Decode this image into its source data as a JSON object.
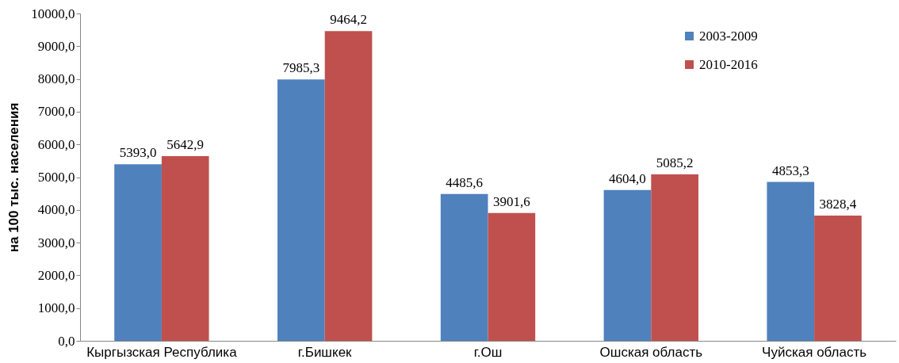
{
  "chart_data": {
    "type": "bar",
    "ylabel": "на 100 тыс. населения",
    "categories": [
      "Кыргызская Республика",
      "г.Бишкек",
      "г.Ош",
      "Ошская область",
      "Чуйская область"
    ],
    "series": [
      {
        "name": "2003-2009",
        "color": "#4f81bd",
        "values": [
          5393.0,
          7985.3,
          4485.6,
          4604.0,
          4853.3
        ],
        "value_labels": [
          "5393,0",
          "7985,3",
          "4485,6",
          "4604,0",
          "4853,3"
        ]
      },
      {
        "name": "2010-2016",
        "color": "#c0504d",
        "values": [
          5642.9,
          9464.2,
          3901.6,
          5085.2,
          3828.4
        ],
        "value_labels": [
          "5642,9",
          "9464,2",
          "3901,6",
          "5085,2",
          "3828,4"
        ]
      }
    ],
    "ylim": [
      0,
      10000
    ],
    "yticks": [
      {
        "value": 0,
        "label": "0,0"
      },
      {
        "value": 1000,
        "label": "1000,0"
      },
      {
        "value": 2000,
        "label": "2000,0"
      },
      {
        "value": 3000,
        "label": "3000,0"
      },
      {
        "value": 4000,
        "label": "4000,0"
      },
      {
        "value": 5000,
        "label": "5000,0"
      },
      {
        "value": 6000,
        "label": "6000,0"
      },
      {
        "value": 7000,
        "label": "7000,0"
      },
      {
        "value": 8000,
        "label": "8000,0"
      },
      {
        "value": 9000,
        "label": "9000,0"
      },
      {
        "value": 10000,
        "label": "10000,0"
      }
    ],
    "grid": false,
    "legend": "top right"
  }
}
